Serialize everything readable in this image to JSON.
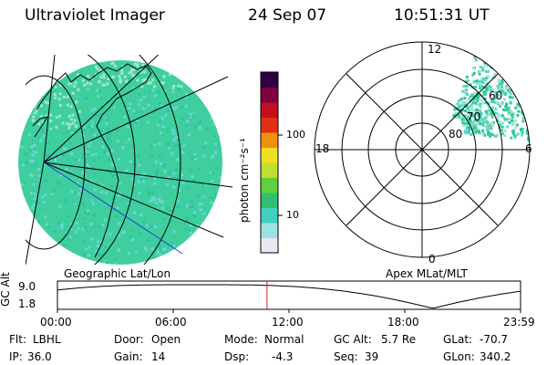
{
  "header": {
    "instrument": "Ultraviolet Imager",
    "date": "24 Sep 07",
    "time": "10:51:31 UT"
  },
  "colorbar": {
    "unit_label": "photon cm⁻²s⁻¹",
    "ticks": [
      "100",
      "10"
    ],
    "scale": "log",
    "colors": [
      "#e8e8f0",
      "#9fe0e0",
      "#40d0c0",
      "#30c070",
      "#60d040",
      "#c0e030",
      "#f0e020",
      "#f09010",
      "#e03010",
      "#c01020",
      "#800040",
      "#300040"
    ]
  },
  "geo_map": {
    "caption": "Geographic Lat/Lon",
    "fill_colors": [
      "#3fcf9f",
      "#6ad6d6",
      "#2ec49a",
      "#9fe7c9"
    ]
  },
  "polar_plot": {
    "caption": "Apex MLat/MLT",
    "mlt_labels": {
      "top": "12",
      "left": "18",
      "right": "6",
      "bottom": "0"
    },
    "lat_labels": [
      "60",
      "70",
      "80"
    ]
  },
  "altitude_plot": {
    "ylabel": "GC Alt",
    "yticks": [
      "9.0",
      "1.8"
    ],
    "xticks": [
      "00:00",
      "06:00",
      "12:00",
      "18:00",
      "23:59"
    ],
    "current_time_hours": 10.86,
    "marker_color": "#cc2020"
  },
  "info": {
    "flt_label": "Flt:",
    "flt_value": "LBHL",
    "ip_label": "IP:",
    "ip_value": "36.0",
    "door_label": "Door:",
    "door_value": "Open",
    "gain_label": "Gain:",
    "gain_value": "14",
    "mode_label": "Mode:",
    "mode_value": "Normal",
    "dsp_label": "Dsp:",
    "dsp_value": "-4.3",
    "gcalt_label": "GC Alt:",
    "gcalt_value": "5.7 Re",
    "seq_label": "Seq:",
    "seq_value": "39",
    "glat_label": "GLat:",
    "glat_value": "-70.7",
    "glon_label": "GLon:",
    "glon_value": "340.2"
  }
}
